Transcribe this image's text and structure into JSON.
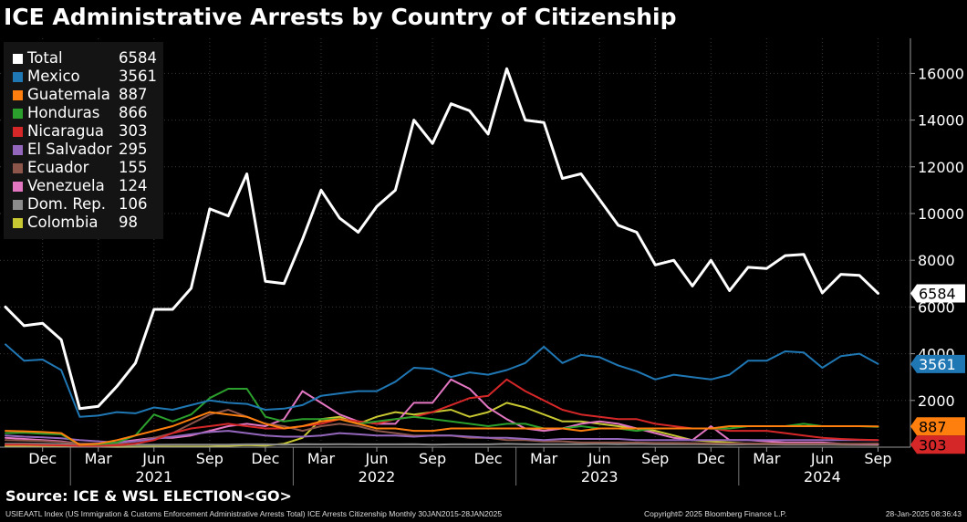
{
  "chart_data": {
    "type": "line",
    "title": "ICE Administrative Arrests by Country of Citizenship",
    "x": [
      "Oct 2020",
      "Nov 2020",
      "Dec 2020",
      "Jan 2021",
      "Feb 2021",
      "Mar 2021",
      "Apr 2021",
      "May 2021",
      "Jun 2021",
      "Jul 2021",
      "Aug 2021",
      "Sep 2021",
      "Oct 2021",
      "Nov 2021",
      "Dec 2021",
      "Jan 2022",
      "Feb 2022",
      "Mar 2022",
      "Apr 2022",
      "May 2022",
      "Jun 2022",
      "Jul 2022",
      "Aug 2022",
      "Sep 2022",
      "Oct 2022",
      "Nov 2022",
      "Dec 2022",
      "Jan 2023",
      "Feb 2023",
      "Mar 2023",
      "Apr 2023",
      "May 2023",
      "Jun 2023",
      "Jul 2023",
      "Aug 2023",
      "Sep 2023",
      "Oct 2023",
      "Nov 2023",
      "Dec 2023",
      "Jan 2024",
      "Feb 2024",
      "Mar 2024",
      "Apr 2024",
      "May 2024",
      "Jun 2024",
      "Jul 2024",
      "Aug 2024",
      "Sep 2024"
    ],
    "ylim": [
      0,
      17500
    ],
    "yticks": [
      2000,
      4000,
      6000,
      8000,
      10000,
      12000,
      14000,
      16000
    ],
    "xticks": [
      {
        "label": "Dec",
        "index": 2
      },
      {
        "label": "Mar",
        "index": 5
      },
      {
        "label": "Jun",
        "index": 8
      },
      {
        "label": "Sep",
        "index": 11
      },
      {
        "label": "Dec",
        "index": 14
      },
      {
        "label": "Mar",
        "index": 17
      },
      {
        "label": "Jun",
        "index": 20
      },
      {
        "label": "Sep",
        "index": 23
      },
      {
        "label": "Dec",
        "index": 26
      },
      {
        "label": "Mar",
        "index": 29
      },
      {
        "label": "Jun",
        "index": 32
      },
      {
        "label": "Sep",
        "index": 35
      },
      {
        "label": "Dec",
        "index": 38
      },
      {
        "label": "Mar",
        "index": 41
      },
      {
        "label": "Jun",
        "index": 44
      },
      {
        "label": "Sep",
        "index": 47
      }
    ],
    "years": [
      {
        "label": "2021",
        "index": 8
      },
      {
        "label": "2022",
        "index": 20
      },
      {
        "label": "2023",
        "index": 32
      },
      {
        "label": "2024",
        "index": 44
      }
    ],
    "year_dividers": [
      3.5,
      15.5,
      27.5,
      39.5
    ],
    "series": [
      {
        "name": "Colombia",
        "last": "98",
        "color": "#c8c832",
        "values": [
          50,
          40,
          30,
          40,
          20,
          20,
          10,
          15,
          20,
          20,
          20,
          25,
          60,
          90,
          70,
          150,
          400,
          1200,
          1300,
          1000,
          1300,
          1500,
          1400,
          1500,
          1600,
          1300,
          1500,
          1900,
          1700,
          1400,
          1100,
          1100,
          1000,
          900,
          800,
          700,
          500,
          300,
          250,
          200,
          150,
          150,
          150,
          130,
          120,
          110,
          100,
          98
        ]
      },
      {
        "name": "Dom. Rep.",
        "last": "106",
        "color": "#8c8c8c",
        "values": [
          150,
          150,
          140,
          130,
          110,
          100,
          90,
          100,
          100,
          110,
          110,
          110,
          110,
          120,
          120,
          110,
          130,
          120,
          130,
          120,
          120,
          120,
          130,
          110,
          120,
          120,
          120,
          140,
          130,
          130,
          130,
          130,
          140,
          130,
          140,
          130,
          130,
          130,
          120,
          110,
          120,
          120,
          110,
          110,
          110,
          110,
          100,
          106
        ]
      },
      {
        "name": "Venezuela",
        "last": "124",
        "color": "#e377c2",
        "values": [
          400,
          350,
          300,
          250,
          150,
          150,
          200,
          300,
          400,
          400,
          500,
          700,
          900,
          1000,
          900,
          1200,
          2400,
          1900,
          1400,
          1100,
          1000,
          1000,
          1900,
          1900,
          2900,
          2500,
          1700,
          1200,
          800,
          700,
          800,
          1000,
          1100,
          1000,
          800,
          600,
          400,
          300,
          900,
          300,
          300,
          250,
          200,
          200,
          200,
          150,
          130,
          124
        ]
      },
      {
        "name": "Ecuador",
        "last": "155",
        "color": "#8c564b",
        "values": [
          300,
          280,
          260,
          220,
          150,
          140,
          150,
          250,
          400,
          600,
          1000,
          1400,
          1600,
          1300,
          1000,
          900,
          700,
          900,
          1000,
          900,
          700,
          600,
          500,
          500,
          500,
          400,
          400,
          300,
          300,
          250,
          250,
          200,
          200,
          200,
          200,
          180,
          180,
          170,
          160,
          160,
          160,
          150,
          150,
          150,
          150,
          150,
          150,
          155
        ]
      },
      {
        "name": "El Salvador",
        "last": "295",
        "color": "#9467bd",
        "values": [
          500,
          450,
          420,
          380,
          300,
          250,
          200,
          250,
          350,
          450,
          550,
          650,
          700,
          600,
          500,
          450,
          450,
          500,
          600,
          550,
          500,
          500,
          450,
          500,
          500,
          450,
          400,
          400,
          350,
          300,
          350,
          350,
          350,
          350,
          300,
          300,
          300,
          300,
          300,
          300,
          300,
          300,
          300,
          300,
          300,
          300,
          300,
          295
        ]
      },
      {
        "name": "Nicaragua",
        "last": "303",
        "color": "#d62728",
        "values": [
          100,
          100,
          90,
          80,
          60,
          60,
          80,
          150,
          300,
          600,
          800,
          900,
          1000,
          900,
          800,
          800,
          900,
          1000,
          1200,
          1100,
          1000,
          1200,
          1300,
          1500,
          1800,
          2100,
          2200,
          2900,
          2400,
          2000,
          1600,
          1400,
          1300,
          1200,
          1200,
          1000,
          900,
          800,
          800,
          700,
          700,
          700,
          600,
          500,
          400,
          350,
          320,
          303
        ]
      },
      {
        "name": "Honduras",
        "last": "866",
        "color": "#2ca02c",
        "values": [
          600,
          620,
          580,
          550,
          100,
          120,
          200,
          500,
          1400,
          1100,
          1400,
          2100,
          2500,
          2500,
          1300,
          1100,
          1200,
          1200,
          1200,
          1000,
          1100,
          1200,
          1300,
          1200,
          1100,
          1000,
          900,
          1000,
          1000,
          800,
          800,
          900,
          800,
          800,
          700,
          800,
          800,
          800,
          800,
          800,
          900,
          900,
          900,
          1000,
          900,
          900,
          900,
          866
        ]
      },
      {
        "name": "Guatemala",
        "last": "887",
        "color": "#ff7f0e",
        "values": [
          700,
          680,
          650,
          600,
          100,
          150,
          300,
          500,
          700,
          900,
          1200,
          1500,
          1400,
          1300,
          1000,
          800,
          900,
          1100,
          1200,
          1000,
          800,
          800,
          700,
          700,
          800,
          800,
          800,
          800,
          800,
          800,
          800,
          700,
          800,
          800,
          800,
          800,
          800,
          800,
          800,
          900,
          900,
          900,
          900,
          900,
          900,
          900,
          900,
          887
        ]
      },
      {
        "name": "Mexico",
        "last": "3561",
        "color": "#1f77b4",
        "values": [
          4400,
          3700,
          3750,
          3300,
          1300,
          1350,
          1500,
          1450,
          1700,
          1600,
          1800,
          2000,
          1900,
          1850,
          1600,
          1650,
          1800,
          2200,
          2300,
          2400,
          2400,
          2800,
          3400,
          3350,
          3000,
          3200,
          3100,
          3300,
          3600,
          4300,
          3600,
          3950,
          3850,
          3500,
          3250,
          2900,
          3100,
          3000,
          2900,
          3100,
          3700,
          3700,
          4100,
          4050,
          3400,
          3900,
          4000,
          3561
        ]
      },
      {
        "name": "Total",
        "last": "6584",
        "color": "#ffffff",
        "values": [
          6000,
          5200,
          5300,
          4600,
          1650,
          1750,
          2600,
          3600,
          5900,
          5900,
          6800,
          10200,
          9900,
          11700,
          7100,
          7000,
          8900,
          11000,
          9800,
          9200,
          10300,
          11000,
          14000,
          13000,
          14700,
          14400,
          13400,
          16200,
          14000,
          13900,
          11500,
          11700,
          10600,
          9500,
          9200,
          7800,
          8000,
          6900,
          8000,
          6700,
          7700,
          7650,
          8200,
          8250,
          6600,
          7400,
          7350,
          6584
        ]
      }
    ]
  },
  "legend": [
    {
      "name": "Total",
      "value": "6584",
      "color": "#ffffff"
    },
    {
      "name": "Mexico",
      "value": "3561",
      "color": "#1f77b4"
    },
    {
      "name": "Guatemala",
      "value": "887",
      "color": "#ff7f0e"
    },
    {
      "name": "Honduras",
      "value": "866",
      "color": "#2ca02c"
    },
    {
      "name": "Nicaragua",
      "value": "303",
      "color": "#d62728"
    },
    {
      "name": "El Salvador",
      "value": "295",
      "color": "#9467bd"
    },
    {
      "name": "Ecuador",
      "value": "155",
      "color": "#8c564b"
    },
    {
      "name": "Venezuela",
      "value": "124",
      "color": "#e377c2"
    },
    {
      "name": "Dom. Rep.",
      "value": "106",
      "color": "#8c8c8c"
    },
    {
      "name": "Colombia",
      "value": "98",
      "color": "#c8c832"
    }
  ],
  "end_labels": [
    {
      "value": "6584",
      "series": "Total",
      "bg": "#ffffff",
      "fg": "#000000"
    },
    {
      "value": "3561",
      "series": "Mexico",
      "bg": "#1f77b4",
      "fg": "#ffffff"
    },
    {
      "value": "887",
      "series": "Guatemala",
      "bg": "#ff7f0e",
      "fg": "#000000"
    },
    {
      "value": "303",
      "series": "Nicaragua",
      "bg": "#d62728",
      "fg": "#000000"
    }
  ],
  "source": "Source: ICE & WSL ELECTION<GO>",
  "footer": {
    "index_text": "USIEAATL Index (US Immigration & Customs Enforcement Administrative Arrests Total) ICE Arrests Citizenship  Monthly 30JAN2015-28JAN2025",
    "copyright": "Copyright© 2025 Bloomberg Finance L.P.",
    "date": "28-Jan-2025 08:36:43"
  }
}
